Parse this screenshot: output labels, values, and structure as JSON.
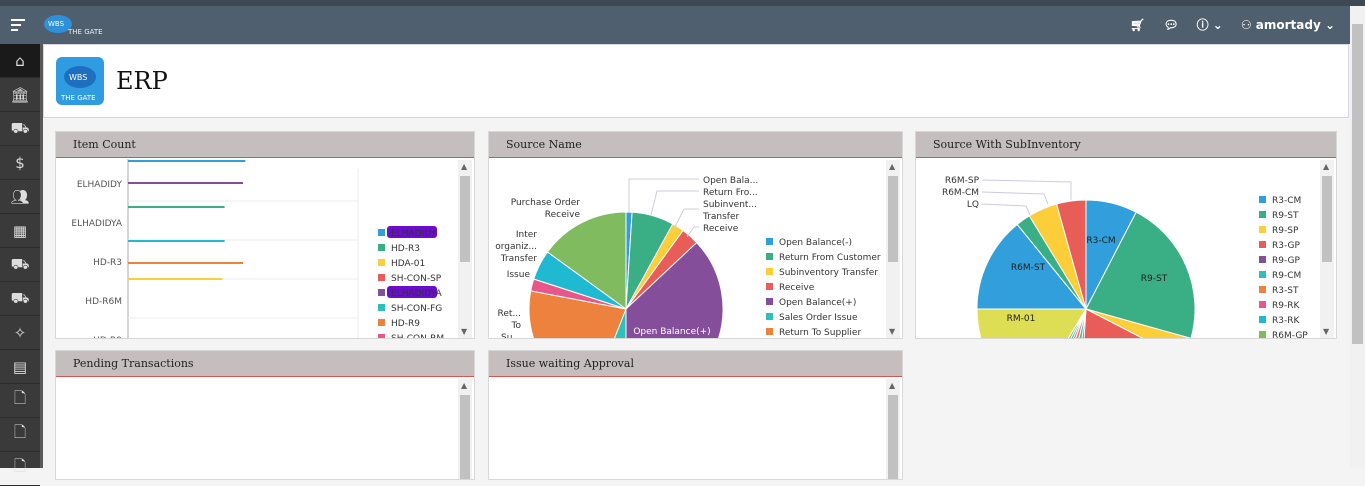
{
  "header": {
    "brand": "WBS THE GATE",
    "user": "amortady",
    "icons": [
      "menu-icon",
      "cart-icon",
      "chat-icon",
      "help-icon",
      "user-icon"
    ]
  },
  "sidebar": {
    "items": [
      "home-icon",
      "bank-icon",
      "cart-check-icon",
      "dollar-icon",
      "users-icon",
      "calculator-icon",
      "basket-icon",
      "cart-icon",
      "magic-wand-icon",
      "table-search-icon",
      "document-icon",
      "document-icon",
      "document-icon"
    ]
  },
  "app": {
    "title": "ERP",
    "logo_text": "WBS THE GATE"
  },
  "panels": {
    "item_count": "Item Count",
    "source_name": "Source Name",
    "source_sub": "Source With SubInventory",
    "pending": "Pending Transactions",
    "issue_wait": "Issue waiting Approval"
  },
  "colors": {
    "accent": "#d9534f",
    "header": "#4f5f6d",
    "panel_header": "#c4bebe"
  },
  "chart_data": [
    {
      "type": "bar",
      "orientation": "horizontal",
      "title": "Item Count",
      "categories": [
        "ELHADIDY",
        "ELHADIDYA",
        "HD-R3",
        "HD-R6M",
        "HD-R9",
        "HDA-01",
        "SH-CON-SP"
      ],
      "values": [
        51,
        50,
        42,
        42,
        50,
        41,
        null
      ],
      "colors": [
        "#309fdb",
        "#854e9b",
        "#3aaf85",
        "#1fb9d1",
        "#ed813e",
        "#fcce39",
        "#e85d58"
      ],
      "legend": [
        "ELHADIDY",
        "HD-R3",
        "HDA-01",
        "SH-CON-SP",
        "ELHADIDYA",
        "SH-CON-FG",
        "HD-R9",
        "SH-CON-RM"
      ],
      "legend_colors": [
        "#309fdb",
        "#3aaf85",
        "#fcce39",
        "#e85d58",
        "#854e9b",
        "#2dbfba",
        "#ed813e",
        "#e8578a"
      ],
      "legend_highlighted": [
        "ELHADIDY",
        "ELHADIDYA"
      ],
      "legend_placement": "right",
      "grid": true
    },
    {
      "type": "pie",
      "title": "Source Name",
      "labels": [
        "Open Balance(-)",
        "Return From Customer",
        "Subinventory Transfer",
        "Receive",
        "Open Balance(+)",
        "Sales Order Issue",
        "Return To Supplier",
        "Issue",
        "Inter organization Transfer",
        "Purchase Order Receive"
      ],
      "values": [
        1,
        7,
        2,
        3,
        37,
        6,
        22,
        2,
        5,
        15
      ],
      "colors": [
        "#309fdb",
        "#3aaf85",
        "#fcce39",
        "#e85d58",
        "#854e9b",
        "#2dbfba",
        "#ed813e",
        "#e8578a",
        "#1fb9d1",
        "#81bb5f"
      ],
      "legend": [
        "Open Balance(-)",
        "Return From Customer",
        "Subinventory Transfer",
        "Receive",
        "Open Balance(+)",
        "Sales Order Issue",
        "Return To Supplier"
      ],
      "callouts": [
        "Open Bala...",
        "Return Fro...",
        "Subinvent... Transfer",
        "Receive"
      ],
      "outer_labels": [
        "Purchase Order Receive",
        "Inter organiz... Transfer",
        "Issue",
        "Ret... To Su..."
      ],
      "inner_labels": [
        "Open Balance(+)"
      ],
      "legend_placement": "right"
    },
    {
      "type": "pie",
      "title": "Source With SubInventory",
      "labels": [
        "R3-CM",
        "R9-ST",
        "R9-SP",
        "R3-GP",
        "R9-GP",
        "R9-CM",
        "R3-ST",
        "R9-RK",
        "R3-RK",
        "R6M-GP",
        "RM-01",
        "R6M-ST",
        "LQ",
        "R6M-CM",
        "R6M-SP"
      ],
      "values": [
        7,
        20,
        3,
        17,
        1,
        1.5,
        1.5,
        1,
        1,
        1,
        15,
        13,
        2,
        4,
        4
      ],
      "colors": [
        "#309fdb",
        "#3aaf85",
        "#fcce39",
        "#e85d58",
        "#854e9b",
        "#2dbfba",
        "#ed813e",
        "#e8578a",
        "#1fb9d1",
        "#81bb5f",
        "#dede55",
        "#309fdb",
        "#3aaf85",
        "#fcce39",
        "#e85d58"
      ],
      "legend": [
        "R3-CM",
        "R9-ST",
        "R9-SP",
        "R3-GP",
        "R9-GP",
        "R9-CM",
        "R3-ST",
        "R9-RK",
        "R3-RK",
        "R6M-GP"
      ],
      "callouts": [
        "R6M-SP",
        "R6M-CM",
        "LQ"
      ],
      "inner_labels": [
        "R3-CM",
        "R9-ST",
        "R6M-ST",
        "RM-01"
      ],
      "legend_placement": "right"
    }
  ]
}
